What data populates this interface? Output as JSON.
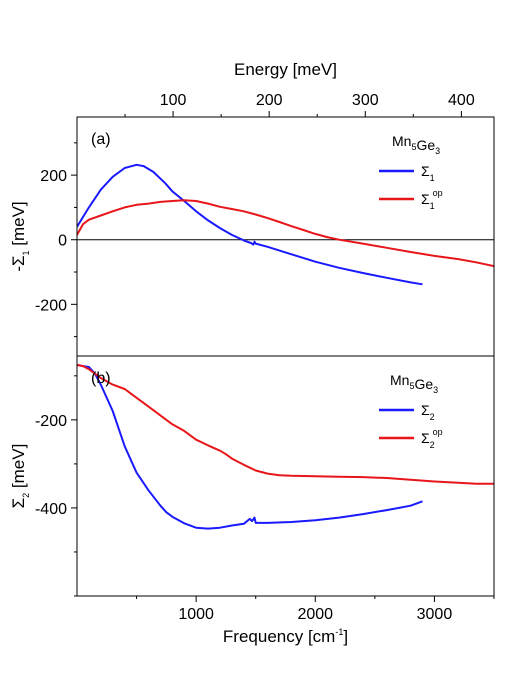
{
  "chart_data": [
    {
      "panel_label": "(a)",
      "type": "line",
      "compound": {
        "parts": [
          {
            "t": "Mn",
            "sub": "5"
          },
          {
            "t": "Ge",
            "sub": "3"
          }
        ]
      },
      "xlabel": {
        "text": "Frequency [cm",
        "sup": "-1",
        "tail": "]"
      },
      "ylabel": {
        "pre": "-Σ",
        "sub": "1",
        "post": " [meV]"
      },
      "top_axis_label": "Energy [meV]",
      "top_axis_ticks": [
        "100",
        "200",
        "300",
        "400"
      ],
      "top_axis_values": [
        100,
        200,
        300,
        400
      ],
      "xlim": [
        0,
        3500
      ],
      "ylim": [
        -360,
        380
      ],
      "yticks": [
        -200,
        0,
        200
      ],
      "yticklabels": [
        "-200",
        "0",
        "200"
      ],
      "zero_line": true,
      "series": [
        {
          "legend": {
            "base": "Σ",
            "sub": "1",
            "sup": ""
          },
          "color": "#1a1aff",
          "x": [
            0,
            100,
            200,
            300,
            400,
            500,
            560,
            640,
            740,
            800,
            900,
            1000,
            1100,
            1200,
            1300,
            1400,
            1460,
            1480,
            1490,
            1500,
            1600,
            1800,
            2000,
            2200,
            2400,
            2600,
            2800,
            2900
          ],
          "y": [
            40,
            100,
            155,
            195,
            222,
            232,
            228,
            210,
            175,
            150,
            120,
            88,
            60,
            36,
            15,
            -2,
            -10,
            -15,
            -6,
            -12,
            -22,
            -45,
            -68,
            -87,
            -103,
            -118,
            -132,
            -138
          ]
        },
        {
          "legend": {
            "base": "Σ",
            "sub": "1",
            "sup": "op"
          },
          "color": "#e8161a",
          "x": [
            0,
            50,
            100,
            200,
            300,
            400,
            500,
            600,
            700,
            800,
            900,
            1000,
            1100,
            1200,
            1300,
            1400,
            1500,
            1600,
            1700,
            1800,
            1900,
            2000,
            2100,
            2200,
            2400,
            2600,
            2800,
            3000,
            3200,
            3350,
            3500
          ],
          "y": [
            15,
            48,
            62,
            75,
            88,
            100,
            108,
            112,
            117,
            120,
            122,
            120,
            112,
            102,
            95,
            88,
            78,
            67,
            55,
            42,
            30,
            18,
            8,
            0,
            -12,
            -25,
            -38,
            -50,
            -60,
            -70,
            -82
          ]
        }
      ]
    },
    {
      "panel_label": "(b)",
      "type": "line",
      "compound": {
        "parts": [
          {
            "t": "Mn",
            "sub": "5"
          },
          {
            "t": "Ge",
            "sub": "3"
          }
        ]
      },
      "ylabel": {
        "pre": "Σ",
        "sub": "2",
        "post": " [meV]"
      },
      "xticks": [
        1000,
        2000,
        3000
      ],
      "xticklabels": [
        "1000",
        "2000",
        "3000"
      ],
      "xlim": [
        0,
        3500
      ],
      "ylim": [
        -600,
        -55
      ],
      "yticks": [
        -400,
        -200
      ],
      "yticklabels": [
        "-400",
        "-200"
      ],
      "series": [
        {
          "legend": {
            "base": "Σ",
            "sub": "2",
            "sup": ""
          },
          "color": "#1a1aff",
          "x": [
            0,
            50,
            100,
            150,
            200,
            300,
            400,
            500,
            600,
            700,
            750,
            800,
            900,
            1000,
            1100,
            1200,
            1300,
            1400,
            1450,
            1470,
            1490,
            1500,
            1600,
            1800,
            2000,
            2200,
            2400,
            2600,
            2800,
            2900
          ],
          "y": [
            -75,
            -78,
            -80,
            -95,
            -120,
            -180,
            -260,
            -320,
            -360,
            -395,
            -410,
            -420,
            -435,
            -445,
            -447,
            -445,
            -440,
            -436,
            -425,
            -430,
            -422,
            -434,
            -434,
            -432,
            -428,
            -422,
            -414,
            -405,
            -395,
            -385
          ]
        },
        {
          "legend": {
            "base": "Σ",
            "sub": "2",
            "sup": "op"
          },
          "color": "#e8161a",
          "x": [
            0,
            50,
            100,
            200,
            300,
            400,
            500,
            600,
            700,
            800,
            900,
            1000,
            1100,
            1200,
            1250,
            1300,
            1400,
            1500,
            1600,
            1700,
            1800,
            2000,
            2200,
            2400,
            2600,
            2800,
            3000,
            3200,
            3350,
            3500
          ],
          "y": [
            -75,
            -78,
            -85,
            -105,
            -120,
            -130,
            -150,
            -170,
            -190,
            -210,
            -225,
            -245,
            -258,
            -270,
            -278,
            -288,
            -302,
            -315,
            -322,
            -326,
            -327,
            -328,
            -329,
            -330,
            -332,
            -336,
            -340,
            -343,
            -345,
            -345
          ]
        }
      ]
    }
  ]
}
